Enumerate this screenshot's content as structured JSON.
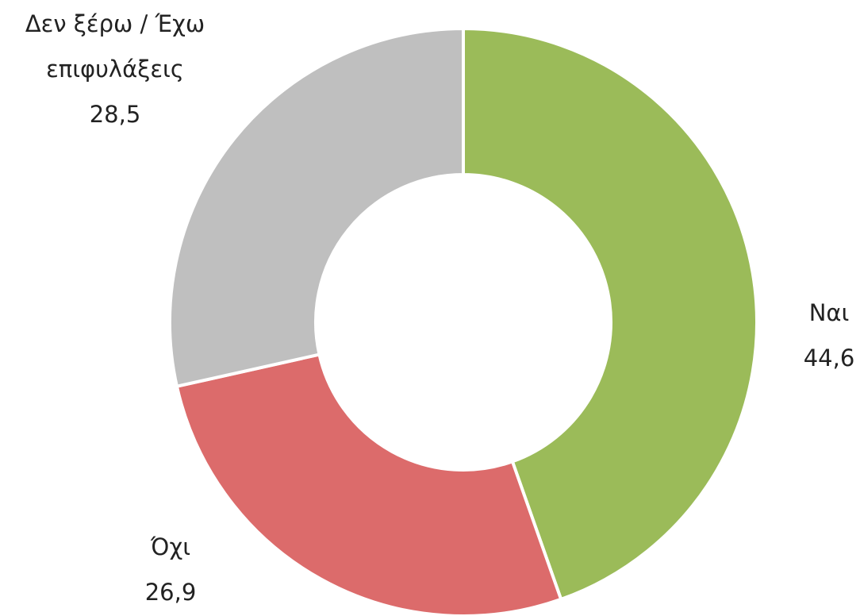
{
  "chart_data": {
    "type": "donut",
    "categories": [
      "Ναι",
      "Όχι",
      "Δεν ξέρω / Έχω επιφυλάξεις"
    ],
    "values": [
      44.6,
      26.9,
      28.5
    ],
    "value_labels": [
      "44,6",
      "26,9",
      "28,5"
    ],
    "colors": [
      "#9bbb59",
      "#dc6b6b",
      "#bfbfbf"
    ]
  }
}
